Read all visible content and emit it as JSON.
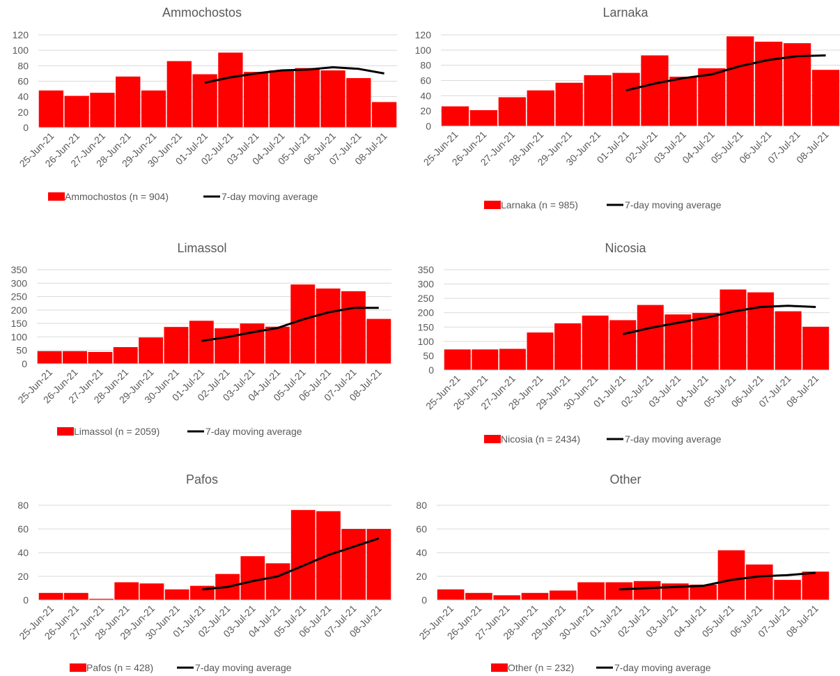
{
  "colors": {
    "bar": "#ff0000",
    "line": "#000000",
    "grid": "#d9d9d9",
    "text": "#595959"
  },
  "chart_data": [
    {
      "type": "bar",
      "title": "Ammochostos",
      "categories": [
        "25-Jun-21",
        "26-Jun-21",
        "27-Jun-21",
        "28-Jun-21",
        "29-Jun-21",
        "30-Jun-21",
        "01-Jul-21",
        "02-Jul-21",
        "03-Jul-21",
        "04-Jul-21",
        "05-Jul-21",
        "06-Jul-21",
        "07-Jul-21",
        "08-Jul-21"
      ],
      "series": [
        {
          "name": "Ammochostos (n = 904)",
          "kind": "bar",
          "values": [
            48,
            41,
            45,
            66,
            48,
            86,
            69,
            97,
            72,
            74,
            77,
            74,
            64,
            33
          ]
        },
        {
          "name": "7-day moving average",
          "kind": "line",
          "values": [
            null,
            null,
            null,
            null,
            null,
            null,
            58,
            65,
            70,
            74,
            75,
            78,
            76,
            70
          ]
        }
      ],
      "ylim": [
        0,
        120
      ],
      "yticks": [
        0,
        20,
        40,
        60,
        80,
        100,
        120
      ],
      "xlabel": "",
      "ylabel": "",
      "grid": true,
      "legend": "bottom"
    },
    {
      "type": "bar",
      "title": "Larnaka",
      "categories": [
        "25-Jun-21",
        "26-Jun-21",
        "27-Jun-21",
        "28-Jun-21",
        "29-Jun-21",
        "30-Jun-21",
        "01-Jul-21",
        "02-Jul-21",
        "03-Jul-21",
        "04-Jul-21",
        "05-Jul-21",
        "06-Jul-21",
        "07-Jul-21",
        "08-Jul-21"
      ],
      "series": [
        {
          "name": "Larnaka (n = 985)",
          "kind": "bar",
          "values": [
            26,
            21,
            38,
            47,
            57,
            67,
            70,
            93,
            65,
            76,
            118,
            111,
            109,
            74
          ]
        },
        {
          "name": "7-day moving average",
          "kind": "line",
          "values": [
            null,
            null,
            null,
            null,
            null,
            null,
            47,
            56,
            63,
            68,
            79,
            87,
            92,
            93
          ]
        }
      ],
      "ylim": [
        0,
        120
      ],
      "yticks": [
        0,
        20,
        40,
        60,
        80,
        100,
        120
      ],
      "xlabel": "",
      "ylabel": "",
      "grid": true,
      "legend": "bottom"
    },
    {
      "type": "bar",
      "title": "Limassol",
      "categories": [
        "25-Jun-21",
        "26-Jun-21",
        "27-Jun-21",
        "28-Jun-21",
        "29-Jun-21",
        "30-Jun-21",
        "01-Jul-21",
        "02-Jul-21",
        "03-Jul-21",
        "04-Jul-21",
        "05-Jul-21",
        "06-Jul-21",
        "07-Jul-21",
        "08-Jul-21"
      ],
      "series": [
        {
          "name": "Limassol (n = 2059)",
          "kind": "bar",
          "values": [
            47,
            47,
            44,
            62,
            98,
            137,
            160,
            132,
            150,
            138,
            295,
            280,
            270,
            167
          ]
        },
        {
          "name": "7-day moving average",
          "kind": "line",
          "values": [
            null,
            null,
            null,
            null,
            null,
            null,
            85,
            99,
            117,
            133,
            165,
            191,
            208,
            208
          ]
        }
      ],
      "ylim": [
        0,
        350
      ],
      "yticks": [
        0,
        50,
        100,
        150,
        200,
        250,
        300,
        350
      ],
      "xlabel": "",
      "ylabel": "",
      "grid": true,
      "legend": "bottom"
    },
    {
      "type": "bar",
      "title": "Nicosia",
      "categories": [
        "25-Jun-21",
        "26-Jun-21",
        "27-Jun-21",
        "28-Jun-21",
        "29-Jun-21",
        "30-Jun-21",
        "01-Jul-21",
        "02-Jul-21",
        "03-Jul-21",
        "04-Jul-21",
        "05-Jul-21",
        "06-Jul-21",
        "07-Jul-21",
        "08-Jul-21"
      ],
      "series": [
        {
          "name": "Nicosia (n = 2434)",
          "kind": "bar",
          "values": [
            72,
            72,
            74,
            131,
            163,
            190,
            174,
            227,
            194,
            199,
            281,
            271,
            205,
            151
          ]
        },
        {
          "name": "7-day moving average",
          "kind": "line",
          "values": [
            null,
            null,
            null,
            null,
            null,
            null,
            125,
            147,
            165,
            182,
            204,
            220,
            224,
            220
          ]
        }
      ],
      "ylim": [
        0,
        350
      ],
      "yticks": [
        0,
        50,
        100,
        150,
        200,
        250,
        300,
        350
      ],
      "xlabel": "",
      "ylabel": "",
      "grid": true,
      "legend": "bottom"
    },
    {
      "type": "bar",
      "title": "Pafos",
      "categories": [
        "25-Jun-21",
        "26-Jun-21",
        "27-Jun-21",
        "28-Jun-21",
        "29-Jun-21",
        "30-Jun-21",
        "01-Jul-21",
        "02-Jul-21",
        "03-Jul-21",
        "04-Jul-21",
        "05-Jul-21",
        "06-Jul-21",
        "07-Jul-21",
        "08-Jul-21"
      ],
      "series": [
        {
          "name": "Pafos (n = 428)",
          "kind": "bar",
          "values": [
            6,
            6,
            1,
            15,
            14,
            9,
            12,
            22,
            37,
            31,
            76,
            75,
            60,
            60
          ]
        },
        {
          "name": "7-day moving average",
          "kind": "line",
          "values": [
            null,
            null,
            null,
            null,
            null,
            null,
            9,
            11,
            16,
            20,
            29,
            38,
            45,
            52
          ]
        }
      ],
      "ylim": [
        0,
        80
      ],
      "yticks": [
        0,
        20,
        40,
        60,
        80
      ],
      "xlabel": "",
      "ylabel": "",
      "grid": true,
      "legend": "bottom"
    },
    {
      "type": "bar",
      "title": "Other",
      "categories": [
        "25-Jun-21",
        "26-Jun-21",
        "27-Jun-21",
        "28-Jun-21",
        "29-Jun-21",
        "30-Jun-21",
        "01-Jul-21",
        "02-Jul-21",
        "03-Jul-21",
        "04-Jul-21",
        "05-Jul-21",
        "06-Jul-21",
        "07-Jul-21",
        "08-Jul-21"
      ],
      "series": [
        {
          "name": "Other (n = 232)",
          "kind": "bar",
          "values": [
            9,
            6,
            4,
            6,
            8,
            15,
            15,
            16,
            14,
            13,
            42,
            30,
            17,
            24
          ]
        },
        {
          "name": "7-day moving average",
          "kind": "line",
          "values": [
            null,
            null,
            null,
            null,
            null,
            null,
            9,
            10,
            11,
            12,
            17,
            20,
            21,
            23
          ]
        }
      ],
      "ylim": [
        0,
        80
      ],
      "yticks": [
        0,
        20,
        40,
        60,
        80
      ],
      "xlabel": "",
      "ylabel": "",
      "grid": true,
      "legend": "bottom"
    }
  ]
}
